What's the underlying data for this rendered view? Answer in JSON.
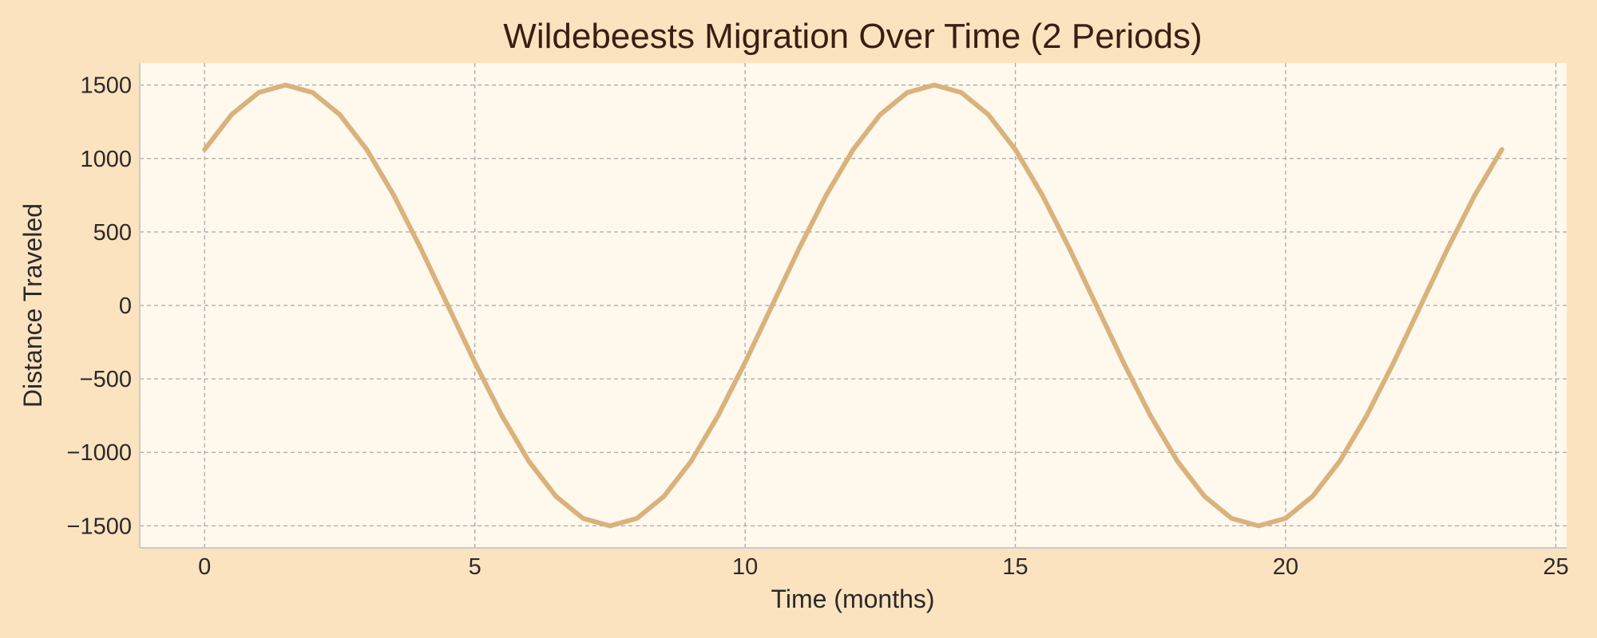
{
  "chart_data": {
    "type": "line",
    "title": "Wildebeests Migration Over Time (2 Periods)",
    "xlabel": "Time (months)",
    "ylabel": "Distance Traveled",
    "xlim": [
      -1.2,
      25.2
    ],
    "ylim": [
      -1650,
      1650
    ],
    "xticks": [
      0,
      5,
      10,
      15,
      20,
      25
    ],
    "yticks": [
      -1500,
      -1000,
      -500,
      0,
      500,
      1000,
      1500
    ],
    "xtick_labels": [
      "0",
      "5",
      "10",
      "15",
      "20",
      "25"
    ],
    "ytick_labels": [
      "−1500",
      "−1000",
      "−500",
      "0",
      "500",
      "1000",
      "1500"
    ],
    "grid": true,
    "series": [
      {
        "color": "#d9b27c",
        "x": [
          0,
          0.5,
          1,
          1.5,
          2,
          2.5,
          3,
          3.5,
          4,
          4.5,
          5,
          5.5,
          6,
          6.5,
          7,
          7.5,
          8,
          8.5,
          9,
          9.5,
          10,
          10.5,
          11,
          11.5,
          12,
          12.5,
          13,
          13.5,
          14,
          14.5,
          15,
          15.5,
          16,
          16.5,
          17,
          17.5,
          18,
          18.5,
          19,
          19.5,
          20,
          20.5,
          21,
          21.5,
          22,
          22.5,
          23,
          23.5,
          24
        ],
        "y": [
          1061,
          1299,
          1449,
          1500,
          1449,
          1299,
          1061,
          750,
          388,
          0,
          -388,
          -750,
          -1061,
          -1299,
          -1449,
          -1500,
          -1449,
          -1299,
          -1061,
          -750,
          -388,
          0,
          388,
          750,
          1061,
          1299,
          1449,
          1500,
          1449,
          1299,
          1061,
          750,
          388,
          0,
          -388,
          -750,
          -1061,
          -1299,
          -1449,
          -1500,
          -1449,
          -1299,
          -1061,
          -750,
          -388,
          0,
          388,
          750,
          1061
        ]
      }
    ]
  },
  "colors": {
    "page_background": "#fce3bf",
    "plot_background": "#fff8ec",
    "grid": "#a8a8a8",
    "axis_spine": "#cccccc",
    "title_text": "#3a1e12",
    "tick_text": "#2a2a2a"
  }
}
